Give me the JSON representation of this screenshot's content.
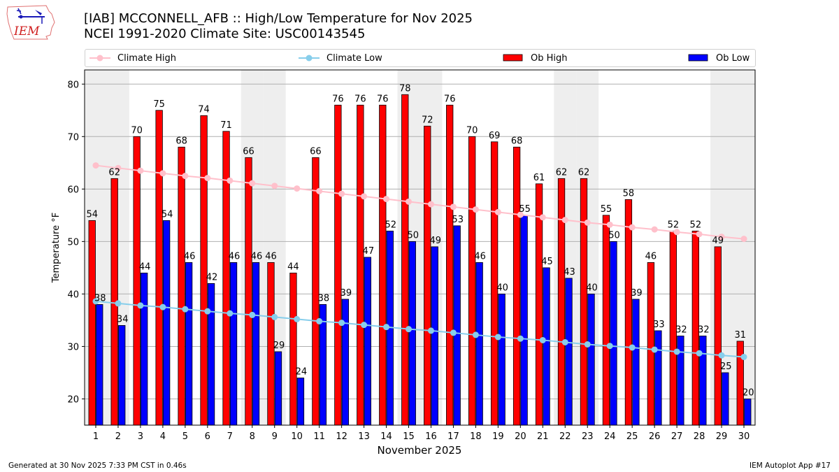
{
  "header": {
    "title_line1": "[IAB] MCCONNELL_AFB :: High/Low Temperature for Nov 2025",
    "title_line2": "NCEI 1991-2020 Climate Site: USC00143545",
    "logo_text": "IEM"
  },
  "footer": {
    "left": "Generated at 30 Nov 2025 7:33 PM CST in 0.46s",
    "right": "IEM Autoplot App #17"
  },
  "chart_data": {
    "type": "bar",
    "title": "[IAB] MCCONNELL_AFB :: High/Low Temperature for Nov 2025",
    "subtitle": "NCEI 1991-2020 Climate Site: USC00143545",
    "xlabel": "November 2025",
    "ylabel": "Temperature °F",
    "ylim": [
      15,
      82.7
    ],
    "yticks": [
      20,
      30,
      40,
      50,
      60,
      70,
      80
    ],
    "grid": true,
    "legend_position": "top",
    "categories": [
      "1",
      "2",
      "3",
      "4",
      "5",
      "6",
      "7",
      "8",
      "9",
      "10",
      "11",
      "12",
      "13",
      "14",
      "15",
      "16",
      "17",
      "18",
      "19",
      "20",
      "21",
      "22",
      "23",
      "24",
      "25",
      "26",
      "27",
      "28",
      "29",
      "30"
    ],
    "weekend_days": [
      1,
      2,
      8,
      9,
      15,
      16,
      22,
      23,
      29,
      30
    ],
    "colors": {
      "ob_high": "#ff0000",
      "ob_low": "#0000ff",
      "climate_high": "#ffc0cb",
      "climate_low": "#87ceeb",
      "weekend_shade": "#eeeeee",
      "grid": "#b0b0b0"
    },
    "series": [
      {
        "name": "Ob High",
        "kind": "bar",
        "values": [
          54,
          62,
          70,
          75,
          68,
          74,
          71,
          66,
          46,
          44,
          66,
          76,
          76,
          76,
          78,
          72,
          76,
          70,
          69,
          68,
          61,
          62,
          62,
          55,
          58,
          46,
          52,
          52,
          49,
          31
        ]
      },
      {
        "name": "Ob Low",
        "kind": "bar",
        "values": [
          38,
          34,
          44,
          54,
          46,
          42,
          46,
          46,
          29,
          24,
          38,
          39,
          47,
          52,
          50,
          49,
          53,
          46,
          40,
          55,
          45,
          43,
          40,
          50,
          39,
          33,
          32,
          32,
          25,
          20
        ]
      },
      {
        "name": "Climate High",
        "kind": "line",
        "values": [
          64.5,
          64.0,
          63.5,
          63.0,
          62.5,
          62.1,
          61.6,
          61.1,
          60.6,
          60.1,
          59.6,
          59.1,
          58.6,
          58.1,
          57.6,
          57.1,
          56.6,
          56.1,
          55.6,
          55.1,
          54.6,
          54.1,
          53.6,
          53.2,
          52.7,
          52.3,
          51.8,
          51.4,
          50.9,
          50.5
        ]
      },
      {
        "name": "Climate Low",
        "kind": "line",
        "values": [
          38.6,
          38.2,
          37.8,
          37.5,
          37.1,
          36.7,
          36.3,
          36.0,
          35.6,
          35.2,
          34.8,
          34.5,
          34.1,
          33.7,
          33.3,
          33.0,
          32.6,
          32.2,
          31.8,
          31.5,
          31.2,
          30.8,
          30.4,
          30.1,
          29.8,
          29.4,
          29.0,
          28.7,
          28.3,
          28.0
        ]
      }
    ],
    "legend": [
      "Climate High",
      "Climate Low",
      "Ob High",
      "Ob Low"
    ]
  }
}
